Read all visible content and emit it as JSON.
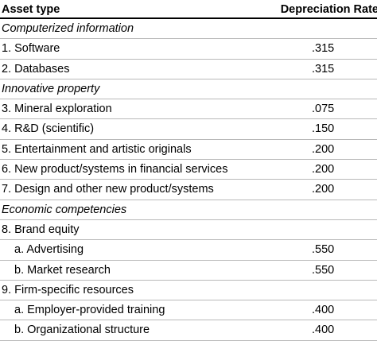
{
  "header": {
    "asset_type": "Asset type",
    "depreciation_rate": "Depreciation Rate"
  },
  "rows": [
    {
      "kind": "section",
      "label": "Computerized information",
      "rate": ""
    },
    {
      "kind": "item",
      "label": "1.  Software",
      "rate": ".315"
    },
    {
      "kind": "item",
      "label": "2.  Databases",
      "rate": ".315"
    },
    {
      "kind": "section",
      "label": "Innovative property",
      "rate": ""
    },
    {
      "kind": "item",
      "label": "3.  Mineral exploration",
      "rate": ".075"
    },
    {
      "kind": "item",
      "label": "4.  R&D (scientific)",
      "rate": ".150"
    },
    {
      "kind": "item",
      "label": "5.  Entertainment and artistic originals",
      "rate": ".200"
    },
    {
      "kind": "item",
      "label": "6.  New product/systems in financial services",
      "rate": ".200"
    },
    {
      "kind": "item",
      "label": "7.  Design and other new product/systems",
      "rate": ".200"
    },
    {
      "kind": "section",
      "label": "Economic competencies",
      "rate": ""
    },
    {
      "kind": "item",
      "label": "8. Brand equity",
      "rate": ""
    },
    {
      "kind": "subitem",
      "label": "a.  Advertising",
      "rate": ".550"
    },
    {
      "kind": "subitem",
      "label": "b.  Market research",
      "rate": ".550"
    },
    {
      "kind": "item",
      "label": "9. Firm-specific resources",
      "rate": ""
    },
    {
      "kind": "subitem",
      "label": "a.  Employer-provided training",
      "rate": ".400"
    },
    {
      "kind": "subitem",
      "label": "b.  Organizational structure",
      "rate": ".400"
    }
  ]
}
